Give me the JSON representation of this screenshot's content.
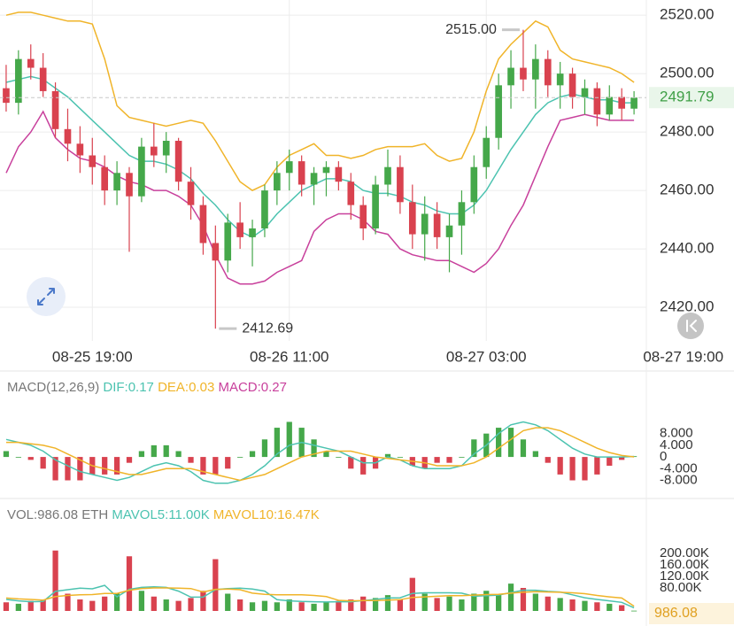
{
  "chart_data": [
    {
      "type": "candlestick",
      "grid": true,
      "up_color": "#45a84a",
      "down_color": "#d9424f",
      "open": [
        2495,
        2490,
        2505,
        2502,
        2494,
        2481,
        2476,
        2472,
        2468,
        2460,
        2466,
        2458,
        2475,
        2472,
        2477,
        2463,
        2455,
        2442,
        2436,
        2449,
        2444,
        2447,
        2460,
        2466,
        2470,
        2462,
        2466,
        2468,
        2463,
        2455,
        2447,
        2462,
        2468,
        2456,
        2445,
        2452,
        2444,
        2448,
        2456,
        2468,
        2478,
        2496,
        2502,
        2498,
        2505,
        2496,
        2500,
        2492,
        2495,
        2486,
        2492,
        2488
      ],
      "high": [
        2503,
        2508,
        2510,
        2507,
        2497,
        2488,
        2482,
        2478,
        2472,
        2470,
        2468,
        2478,
        2483,
        2480,
        2478,
        2468,
        2458,
        2448,
        2452,
        2456,
        2450,
        2462,
        2470,
        2474,
        2472,
        2468,
        2470,
        2470,
        2466,
        2458,
        2465,
        2474,
        2472,
        2462,
        2458,
        2456,
        2452,
        2460,
        2472,
        2482,
        2500,
        2508,
        2515,
        2510,
        2508,
        2504,
        2502,
        2498,
        2497,
        2496,
        2495,
        2494
      ],
      "low": [
        2487,
        2486,
        2498,
        2492,
        2478,
        2470,
        2466,
        2462,
        2455,
        2455,
        2439,
        2456,
        2468,
        2466,
        2460,
        2450,
        2438,
        2412.69,
        2432,
        2440,
        2434,
        2444,
        2455,
        2460,
        2458,
        2455,
        2458,
        2460,
        2450,
        2443,
        2445,
        2458,
        2452,
        2440,
        2436,
        2440,
        2432,
        2438,
        2452,
        2464,
        2474,
        2488,
        2494,
        2488,
        2492,
        2488,
        2488,
        2486,
        2482,
        2484,
        2484,
        2486
      ],
      "close": [
        2490,
        2505,
        2502,
        2494,
        2481,
        2476,
        2472,
        2468,
        2460,
        2466,
        2458,
        2475,
        2472,
        2477,
        2463,
        2455,
        2442,
        2436,
        2449,
        2444,
        2447,
        2460,
        2466,
        2470,
        2462,
        2466,
        2468,
        2463,
        2455,
        2447,
        2462,
        2468,
        2456,
        2445,
        2452,
        2444,
        2448,
        2456,
        2468,
        2478,
        2496,
        2502,
        2498,
        2505,
        2496,
        2500,
        2492,
        2495,
        2486,
        2492,
        2488,
        2491.79
      ],
      "lines": [
        {
          "color": "#f0b429",
          "values": [
            2520,
            2521,
            2521,
            2520,
            2519,
            2518,
            2518,
            2517,
            2505,
            2489,
            2485,
            2484,
            2483,
            2482,
            2483,
            2484,
            2483,
            2477,
            2470,
            2463,
            2460,
            2462,
            2468,
            2472,
            2474,
            2476,
            2472,
            2472,
            2471,
            2472,
            2474,
            2475,
            2475,
            2475,
            2476,
            2472,
            2470,
            2471,
            2480,
            2494,
            2505,
            2510,
            2514,
            2518,
            2516,
            2508,
            2505,
            2504,
            2503,
            2502,
            2500,
            2497
          ]
        },
        {
          "color": "#4cc3b0",
          "values": [
            2497,
            2498,
            2499,
            2498,
            2495,
            2492,
            2488,
            2484,
            2480,
            2476,
            2472,
            2470,
            2470,
            2469,
            2467,
            2464,
            2459,
            2455,
            2450,
            2446,
            2444,
            2447,
            2452,
            2456,
            2460,
            2462,
            2464,
            2464,
            2463,
            2460,
            2459,
            2459,
            2458,
            2456,
            2455,
            2453,
            2452,
            2452,
            2455,
            2460,
            2467,
            2474,
            2480,
            2486,
            2490,
            2492,
            2493,
            2492,
            2491,
            2491,
            2490,
            2490
          ]
        },
        {
          "color": "#c8409c",
          "values": [
            2466,
            2475,
            2480,
            2487,
            2478,
            2474,
            2471,
            2470,
            2468,
            2465,
            2463,
            2462,
            2460,
            2460,
            2458,
            2455,
            2448,
            2438,
            2430,
            2428,
            2428,
            2429,
            2432,
            2434,
            2436,
            2446,
            2450,
            2452,
            2452,
            2450,
            2446,
            2445,
            2440,
            2438,
            2437,
            2436,
            2436,
            2434,
            2432,
            2435,
            2440,
            2448,
            2455,
            2465,
            2475,
            2484,
            2485,
            2486,
            2485,
            2484,
            2484,
            2484
          ]
        }
      ],
      "xlim": [
        -0.5,
        52
      ],
      "xticks": [
        {
          "value": 7,
          "label": "08-25 19:00"
        },
        {
          "value": 23,
          "label": "08-26 11:00"
        },
        {
          "value": 39,
          "label": "08-27 03:00"
        },
        {
          "value": 55,
          "label": "08-27 19:00"
        }
      ],
      "ylim": [
        2408.5,
        2525.2
      ],
      "yticks": [
        {
          "value": 2420,
          "label": "2420.00"
        },
        {
          "value": 2440,
          "label": "2440.00"
        },
        {
          "value": 2460,
          "label": "2460.00"
        },
        {
          "value": 2480,
          "label": "2480.00"
        },
        {
          "value": 2500,
          "label": "2500.00"
        },
        {
          "value": 2520,
          "label": "2520.00"
        }
      ],
      "max_label": {
        "value": 2515,
        "label": "2515.00"
      },
      "min_label": {
        "value": 2412.69,
        "label": "2412.69"
      },
      "last_price": {
        "value": 2491.79,
        "label": "2491.79"
      }
    },
    {
      "type": "macd",
      "title": "MACD(12,26,9)",
      "histogram": {
        "name": "MACD:0.27",
        "name_color": "#c8409c",
        "up_color": "#45a84a",
        "down_color": "#d9424f",
        "values": [
          2,
          0,
          -1,
          -4,
          -8,
          -8,
          -8,
          -6,
          -6,
          -6,
          -2,
          2,
          4,
          4,
          2,
          -2,
          -6,
          -6,
          -4,
          0,
          2,
          6,
          10,
          12,
          10,
          6,
          2,
          0,
          -4,
          -6,
          -4,
          1,
          0,
          -3,
          -4,
          -2,
          -2,
          0,
          6,
          8,
          10,
          10,
          6,
          2,
          -2,
          -6,
          -8,
          -8,
          -6,
          -3,
          -1,
          0.27
        ]
      },
      "series": [
        {
          "name": "DIF:0.17",
          "color": "#4cc3b0",
          "values": [
            6,
            5,
            4,
            2,
            -1,
            -3,
            -5,
            -6,
            -7,
            -8,
            -7,
            -5,
            -3,
            -2,
            -3,
            -5,
            -8,
            -9,
            -9,
            -8,
            -6,
            -3,
            1,
            4,
            5,
            4,
            3,
            2,
            0,
            -2,
            -2,
            0,
            -1,
            -3,
            -4,
            -4,
            -4,
            -3,
            1,
            4,
            8,
            11,
            12,
            11,
            9,
            6,
            3,
            1,
            0,
            0,
            0,
            0.17
          ]
        },
        {
          "name": "DEA:0.03",
          "color": "#f0b429",
          "values": [
            5,
            5,
            4.5,
            4,
            3,
            1,
            -1,
            -3,
            -4,
            -5,
            -6,
            -6,
            -5,
            -4,
            -4,
            -4,
            -5,
            -6,
            -7,
            -8,
            -7,
            -6,
            -4,
            -2,
            0,
            1,
            2,
            2,
            2,
            1,
            0,
            -0.5,
            -1,
            -1.5,
            -2,
            -3,
            -3,
            -3,
            -2,
            0,
            3,
            6,
            9,
            10,
            10,
            9,
            7,
            5,
            3,
            1.5,
            0.5,
            0.03
          ]
        }
      ],
      "ylim": [
        -13.3,
        18.5
      ],
      "yticks": [
        {
          "value": 8,
          "label": "8.000"
        },
        {
          "value": 4,
          "label": "4.000"
        },
        0,
        {
          "value": -4,
          "label": "-4.000"
        },
        {
          "value": -8,
          "label": "-8.000"
        }
      ]
    },
    {
      "type": "volume",
      "title": "VOL:986.08 ETH",
      "up_color": "#45a84a",
      "down_color": "#d9424f",
      "values": [
        30000,
        25000,
        35000,
        40000,
        210000,
        60000,
        40000,
        35000,
        50000,
        60000,
        190000,
        70000,
        50000,
        40000,
        35000,
        45000,
        70000,
        180000,
        60000,
        40000,
        30000,
        35000,
        30000,
        40000,
        30000,
        25000,
        30000,
        35000,
        40000,
        50000,
        45000,
        55000,
        40000,
        115000,
        60000,
        45000,
        50000,
        40000,
        60000,
        70000,
        55000,
        95000,
        80000,
        60000,
        50000,
        45000,
        40000,
        35000,
        30000,
        25000,
        20000,
        986.08
      ],
      "series": [
        {
          "name": "MAVOL5:11.00K",
          "color": "#4cc3b0",
          "values": [
            40000,
            35000,
            32000,
            33000,
            68000,
            74000,
            79000,
            77000,
            89000,
            49000,
            75000,
            82000,
            84000,
            82000,
            69000,
            48000,
            48000,
            74000,
            78000,
            79000,
            76000,
            69000,
            39000,
            35000,
            33000,
            32000,
            31000,
            32000,
            32000,
            36000,
            40000,
            45000,
            46000,
            61000,
            63000,
            63000,
            63000,
            62000,
            51000,
            53000,
            55000,
            64000,
            72000,
            72000,
            68000,
            66000,
            56000,
            46000,
            40000,
            35000,
            30000,
            11000
          ]
        },
        {
          "name": "MAVOL10:16.47K",
          "color": "#f0b429",
          "values": [
            45000,
            42000,
            40000,
            38000,
            50000,
            54000,
            56000,
            57000,
            61000,
            61000,
            72000,
            78000,
            80000,
            80000,
            79000,
            78000,
            66000,
            75000,
            76000,
            74000,
            62000,
            58000,
            56000,
            56000,
            56000,
            54000,
            50000,
            37000,
            35000,
            36000,
            36000,
            38000,
            39000,
            47000,
            49000,
            51000,
            53000,
            53000,
            55000,
            57000,
            58000,
            62000,
            65000,
            67000,
            66000,
            65000,
            63000,
            60000,
            54000,
            49000,
            45000,
            16470
          ]
        }
      ],
      "ylim": [
        0,
        277000
      ],
      "yticks": [
        {
          "value": 80000,
          "label": "80.00K"
        },
        {
          "value": 120000,
          "label": "120.00K"
        },
        {
          "value": 160000,
          "label": "160.00K"
        },
        {
          "value": 200000,
          "label": "200.00K"
        }
      ],
      "last_value": {
        "value": 986.08,
        "label": "986.08"
      }
    }
  ]
}
